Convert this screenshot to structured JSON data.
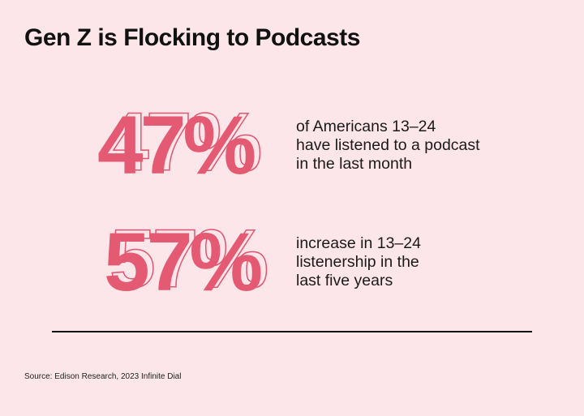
{
  "title": "Gen Z is Flocking to Podcasts",
  "stats": [
    {
      "value": "47%",
      "description": "of Americans 13–24\nhave listened to a podcast\nin the last month"
    },
    {
      "value": "57%",
      "description": "increase in 13–24\nlistenership in the\nlast five years"
    }
  ],
  "source": "Source: Edison Research, 2023 Infinite Dial",
  "colors": {
    "background": "#fde6ea",
    "accent": "#e45a72",
    "text": "#111111"
  }
}
